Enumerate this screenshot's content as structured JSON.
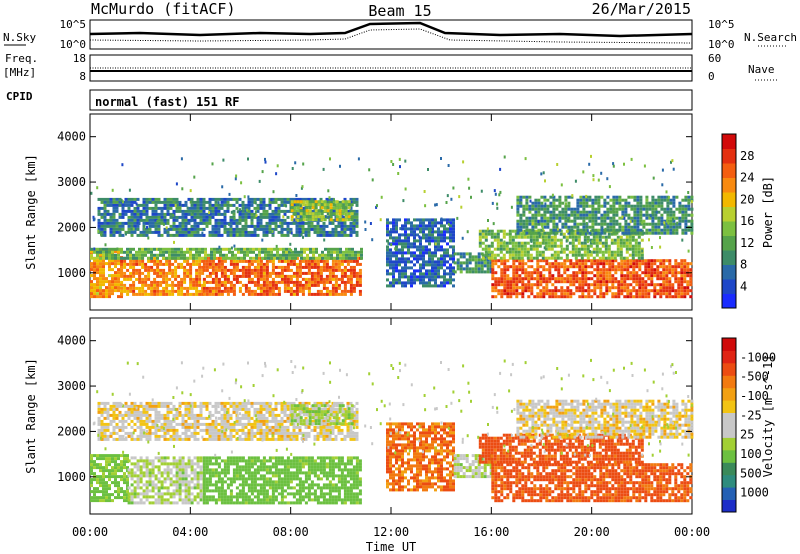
{
  "header": {
    "site": "McMurdo (fitACF)",
    "beam": "Beam 15",
    "date": "26/Mar/2015"
  },
  "status_panels": {
    "nsky_label": "N.Sky",
    "nsearch_label": "N.Search",
    "nsky_ticks": [
      "10^5",
      "10^0"
    ],
    "nsearch_ticks": [
      "10^5",
      "10^0"
    ],
    "freq_label": "Freq.",
    "freq_unit": "[MHz]",
    "freq_ticks": [
      "18",
      "8"
    ],
    "nave_label": "Nave",
    "nave_ticks": [
      "60",
      "0"
    ],
    "cpid_label": "CPID",
    "cpid_value": "normal (fast) 151 RF"
  },
  "chart_data": [
    {
      "type": "heatmap",
      "ylabel": "Slant Range [km]",
      "xlabel": "Time UT",
      "xlim": [
        0,
        24
      ],
      "ylim": [
        180,
        4500
      ],
      "x_tick_labels": [
        "00:00",
        "04:00",
        "08:00",
        "12:00",
        "16:00",
        "20:00",
        "00:00"
      ],
      "y_tick_labels": [
        "1000",
        "2000",
        "3000",
        "4000"
      ],
      "colorbar": {
        "label": "Power [dB]",
        "tick_labels": [
          "4",
          "8",
          "12",
          "16",
          "20",
          "24",
          "28"
        ],
        "colors": [
          "#1a2cff",
          "#1e47c8",
          "#2a6aa8",
          "#3d8c68",
          "#55a34a",
          "#7cc040",
          "#b8d030",
          "#f2b800",
          "#f88a10",
          "#f45e10",
          "#e43010",
          "#d20a0a"
        ]
      },
      "regions": [
        {
          "t": [
            0.0,
            1.2
          ],
          "r": [
            450,
            1500
          ],
          "v": 22
        },
        {
          "t": [
            1.2,
            4.5
          ],
          "r": [
            500,
            1350
          ],
          "v": 23
        },
        {
          "t": [
            4.5,
            10.8
          ],
          "r": [
            550,
            1350
          ],
          "v": 25
        },
        {
          "t": [
            0.0,
            10.8
          ],
          "r": [
            1300,
            1550
          ],
          "v": 13
        },
        {
          "t": [
            0.3,
            10.6
          ],
          "r": [
            1850,
            2650
          ],
          "v": 8
        },
        {
          "t": [
            8.0,
            10.5
          ],
          "r": [
            2200,
            2600
          ],
          "v": 16
        },
        {
          "t": [
            11.8,
            14.5
          ],
          "r": [
            700,
            2200
          ],
          "v": 6
        },
        {
          "t": [
            14.5,
            16.0
          ],
          "r": [
            1000,
            1450
          ],
          "v": 10
        },
        {
          "t": [
            16.0,
            24.0
          ],
          "r": [
            450,
            1300
          ],
          "v": 26
        },
        {
          "t": [
            15.5,
            22.0
          ],
          "r": [
            1300,
            1950
          ],
          "v": 14
        },
        {
          "t": [
            17.0,
            24.0
          ],
          "r": [
            1900,
            2700
          ],
          "v": 10
        }
      ]
    },
    {
      "type": "heatmap",
      "ylabel": "Slant Range [km]",
      "xlabel": "Time UT",
      "xlim": [
        0,
        24
      ],
      "ylim": [
        180,
        4500
      ],
      "x_tick_labels": [
        "00:00",
        "04:00",
        "08:00",
        "12:00",
        "16:00",
        "20:00",
        "00:00"
      ],
      "y_tick_labels": [
        "1000",
        "2000",
        "3000",
        "4000"
      ],
      "colorbar": {
        "label": "Velocity [m s^-1]",
        "tick_labels": [
          "1000",
          "500",
          "100",
          "25",
          "-25",
          "-100",
          "-500",
          "-1000"
        ],
        "colors": [
          "#1c2ec8",
          "#2460b4",
          "#2e8c7e",
          "#3a8a5a",
          "#6cc040",
          "#a2d034",
          "#c8c8c8",
          "#c8c8c8",
          "#f2c414",
          "#f2a012",
          "#f27a10",
          "#ec4c12",
          "#e02414",
          "#d00a0a"
        ]
      },
      "regions": [
        {
          "t": [
            0.0,
            1.5
          ],
          "r": [
            450,
            1500
          ],
          "v": 120
        },
        {
          "t": [
            1.5,
            4.5
          ],
          "r": [
            450,
            1450
          ],
          "v": 60
        },
        {
          "t": [
            4.5,
            10.8
          ],
          "r": [
            450,
            1450
          ],
          "v": 140
        },
        {
          "t": [
            0.3,
            10.6
          ],
          "r": [
            1850,
            2650
          ],
          "v": 10
        },
        {
          "t": [
            8.0,
            10.5
          ],
          "r": [
            2200,
            2600
          ],
          "v": 80
        },
        {
          "t": [
            11.8,
            14.5
          ],
          "r": [
            700,
            2200
          ],
          "v": -90
        },
        {
          "t": [
            14.5,
            16.0
          ],
          "r": [
            1000,
            1500
          ],
          "v": 60
        },
        {
          "t": [
            16.0,
            24.0
          ],
          "r": [
            450,
            1300
          ],
          "v": -120
        },
        {
          "t": [
            15.5,
            22.0
          ],
          "r": [
            1300,
            1950
          ],
          "v": -130
        },
        {
          "t": [
            17.0,
            24.0
          ],
          "r": [
            1900,
            2700
          ],
          "v": 5
        }
      ]
    }
  ]
}
